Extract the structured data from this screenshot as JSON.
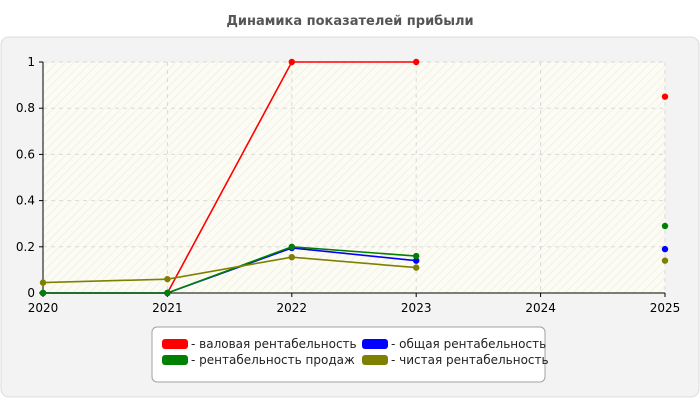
{
  "chart_data": {
    "type": "line",
    "title": "Динамика показателей прибыли",
    "xlabel": "",
    "ylabel": "",
    "x": [
      "2020",
      "2021",
      "2022",
      "2023",
      "2024",
      "2025"
    ],
    "ylim": [
      0,
      1
    ],
    "yticks": [
      "0",
      "0.2",
      "0.4",
      "0.6",
      "0.8",
      "1"
    ],
    "grid": true,
    "legend_position": "bottom",
    "series": [
      {
        "name": "- валовая рентабельность",
        "color": "#ff0000",
        "values": [
          0,
          0,
          1,
          1,
          null,
          0.85
        ]
      },
      {
        "name": "- общая рентабельность",
        "color": "#0000ff",
        "values": [
          0,
          0,
          0.195,
          0.14,
          null,
          0.19
        ]
      },
      {
        "name": "- рентабельность продаж",
        "color": "#008000",
        "values": [
          0,
          0,
          0.2,
          0.16,
          null,
          0.29
        ]
      },
      {
        "name": "- чистая рентабельность",
        "color": "#808000",
        "values": [
          0.045,
          0.06,
          0.155,
          0.11,
          null,
          0.14
        ]
      }
    ]
  }
}
